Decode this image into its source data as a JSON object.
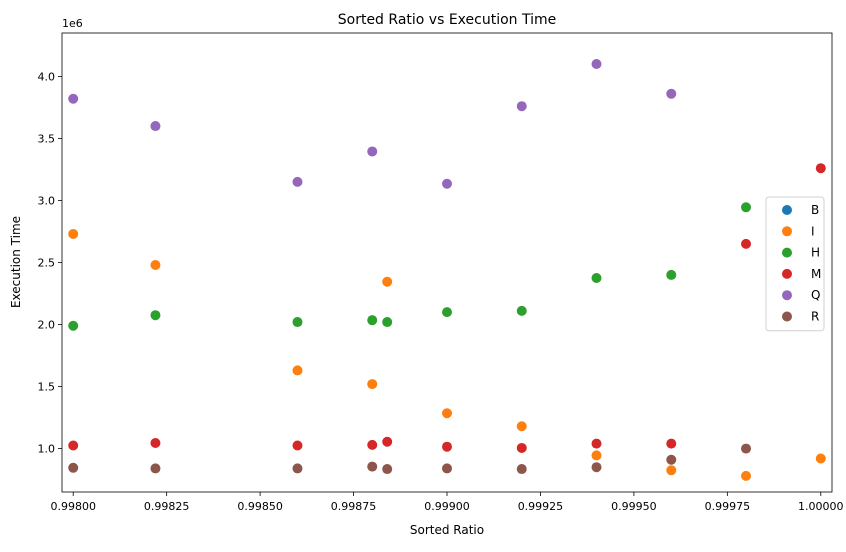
{
  "chart_data": {
    "type": "scatter",
    "title": "Sorted Ratio vs Execution Time",
    "xlabel": "Sorted Ratio",
    "ylabel": "Execution Time",
    "y_offset_label": "1e6",
    "xlim": [
      0.99797,
      1.00003
    ],
    "ylim": [
      650000,
      4350000
    ],
    "x_ticks": [
      0.998,
      0.99825,
      0.9985,
      0.99875,
      0.999,
      0.99925,
      0.9995,
      0.99975,
      1.0
    ],
    "x_tick_labels": [
      "0.99800",
      "0.99825",
      "0.99850",
      "0.99875",
      "0.99900",
      "0.99925",
      "0.99950",
      "0.99975",
      "1.00000"
    ],
    "y_ticks": [
      1000000,
      1500000,
      2000000,
      2500000,
      3000000,
      3500000,
      4000000
    ],
    "y_tick_labels": [
      "1.0",
      "1.5",
      "2.0",
      "2.5",
      "3.0",
      "3.5",
      "4.0"
    ],
    "grid": false,
    "legend_position": "right",
    "series": [
      {
        "name": "B",
        "color": "#1f77b4",
        "points": []
      },
      {
        "name": "I",
        "color": "#ff7f0e",
        "points": [
          [
            0.998,
            2730000
          ],
          [
            0.99822,
            2480000
          ],
          [
            0.99884,
            2345000
          ],
          [
            0.9986,
            1630000
          ],
          [
            0.9988,
            1520000
          ],
          [
            0.999,
            1285000
          ],
          [
            0.9992,
            1180000
          ],
          [
            0.9994,
            945000
          ],
          [
            0.9996,
            825000
          ],
          [
            0.9998,
            780000
          ],
          [
            1.0,
            920000
          ]
        ]
      },
      {
        "name": "H",
        "color": "#2ca02c",
        "points": [
          [
            0.998,
            1990000
          ],
          [
            0.99822,
            2075000
          ],
          [
            0.99884,
            2020000
          ],
          [
            0.9986,
            2020000
          ],
          [
            0.9988,
            2035000
          ],
          [
            0.999,
            2100000
          ],
          [
            0.9992,
            2110000
          ],
          [
            0.9994,
            2375000
          ],
          [
            0.9996,
            2400000
          ],
          [
            0.9998,
            2945000
          ]
        ]
      },
      {
        "name": "M",
        "color": "#d62728",
        "points": [
          [
            0.998,
            1025000
          ],
          [
            0.99822,
            1045000
          ],
          [
            0.99884,
            1055000
          ],
          [
            0.9986,
            1025000
          ],
          [
            0.9988,
            1030000
          ],
          [
            0.999,
            1015000
          ],
          [
            0.9992,
            1005000
          ],
          [
            0.9994,
            1040000
          ],
          [
            0.9996,
            1040000
          ],
          [
            0.9998,
            2650000
          ],
          [
            1.0,
            3260000
          ]
        ]
      },
      {
        "name": "Q",
        "color": "#9467bd",
        "points": [
          [
            0.998,
            3820000
          ],
          [
            0.99822,
            3600000
          ],
          [
            0.9986,
            3150000
          ],
          [
            0.9988,
            3395000
          ],
          [
            0.999,
            3135000
          ],
          [
            0.9992,
            3760000
          ],
          [
            0.9994,
            4100000
          ],
          [
            0.9996,
            3860000
          ]
        ]
      },
      {
        "name": "R",
        "color": "#8c564b",
        "points": [
          [
            0.998,
            845000
          ],
          [
            0.99822,
            840000
          ],
          [
            0.99884,
            835000
          ],
          [
            0.9986,
            840000
          ],
          [
            0.9988,
            855000
          ],
          [
            0.999,
            840000
          ],
          [
            0.9992,
            835000
          ],
          [
            0.9994,
            850000
          ],
          [
            0.9996,
            910000
          ],
          [
            0.9998,
            1000000
          ]
        ]
      }
    ]
  }
}
